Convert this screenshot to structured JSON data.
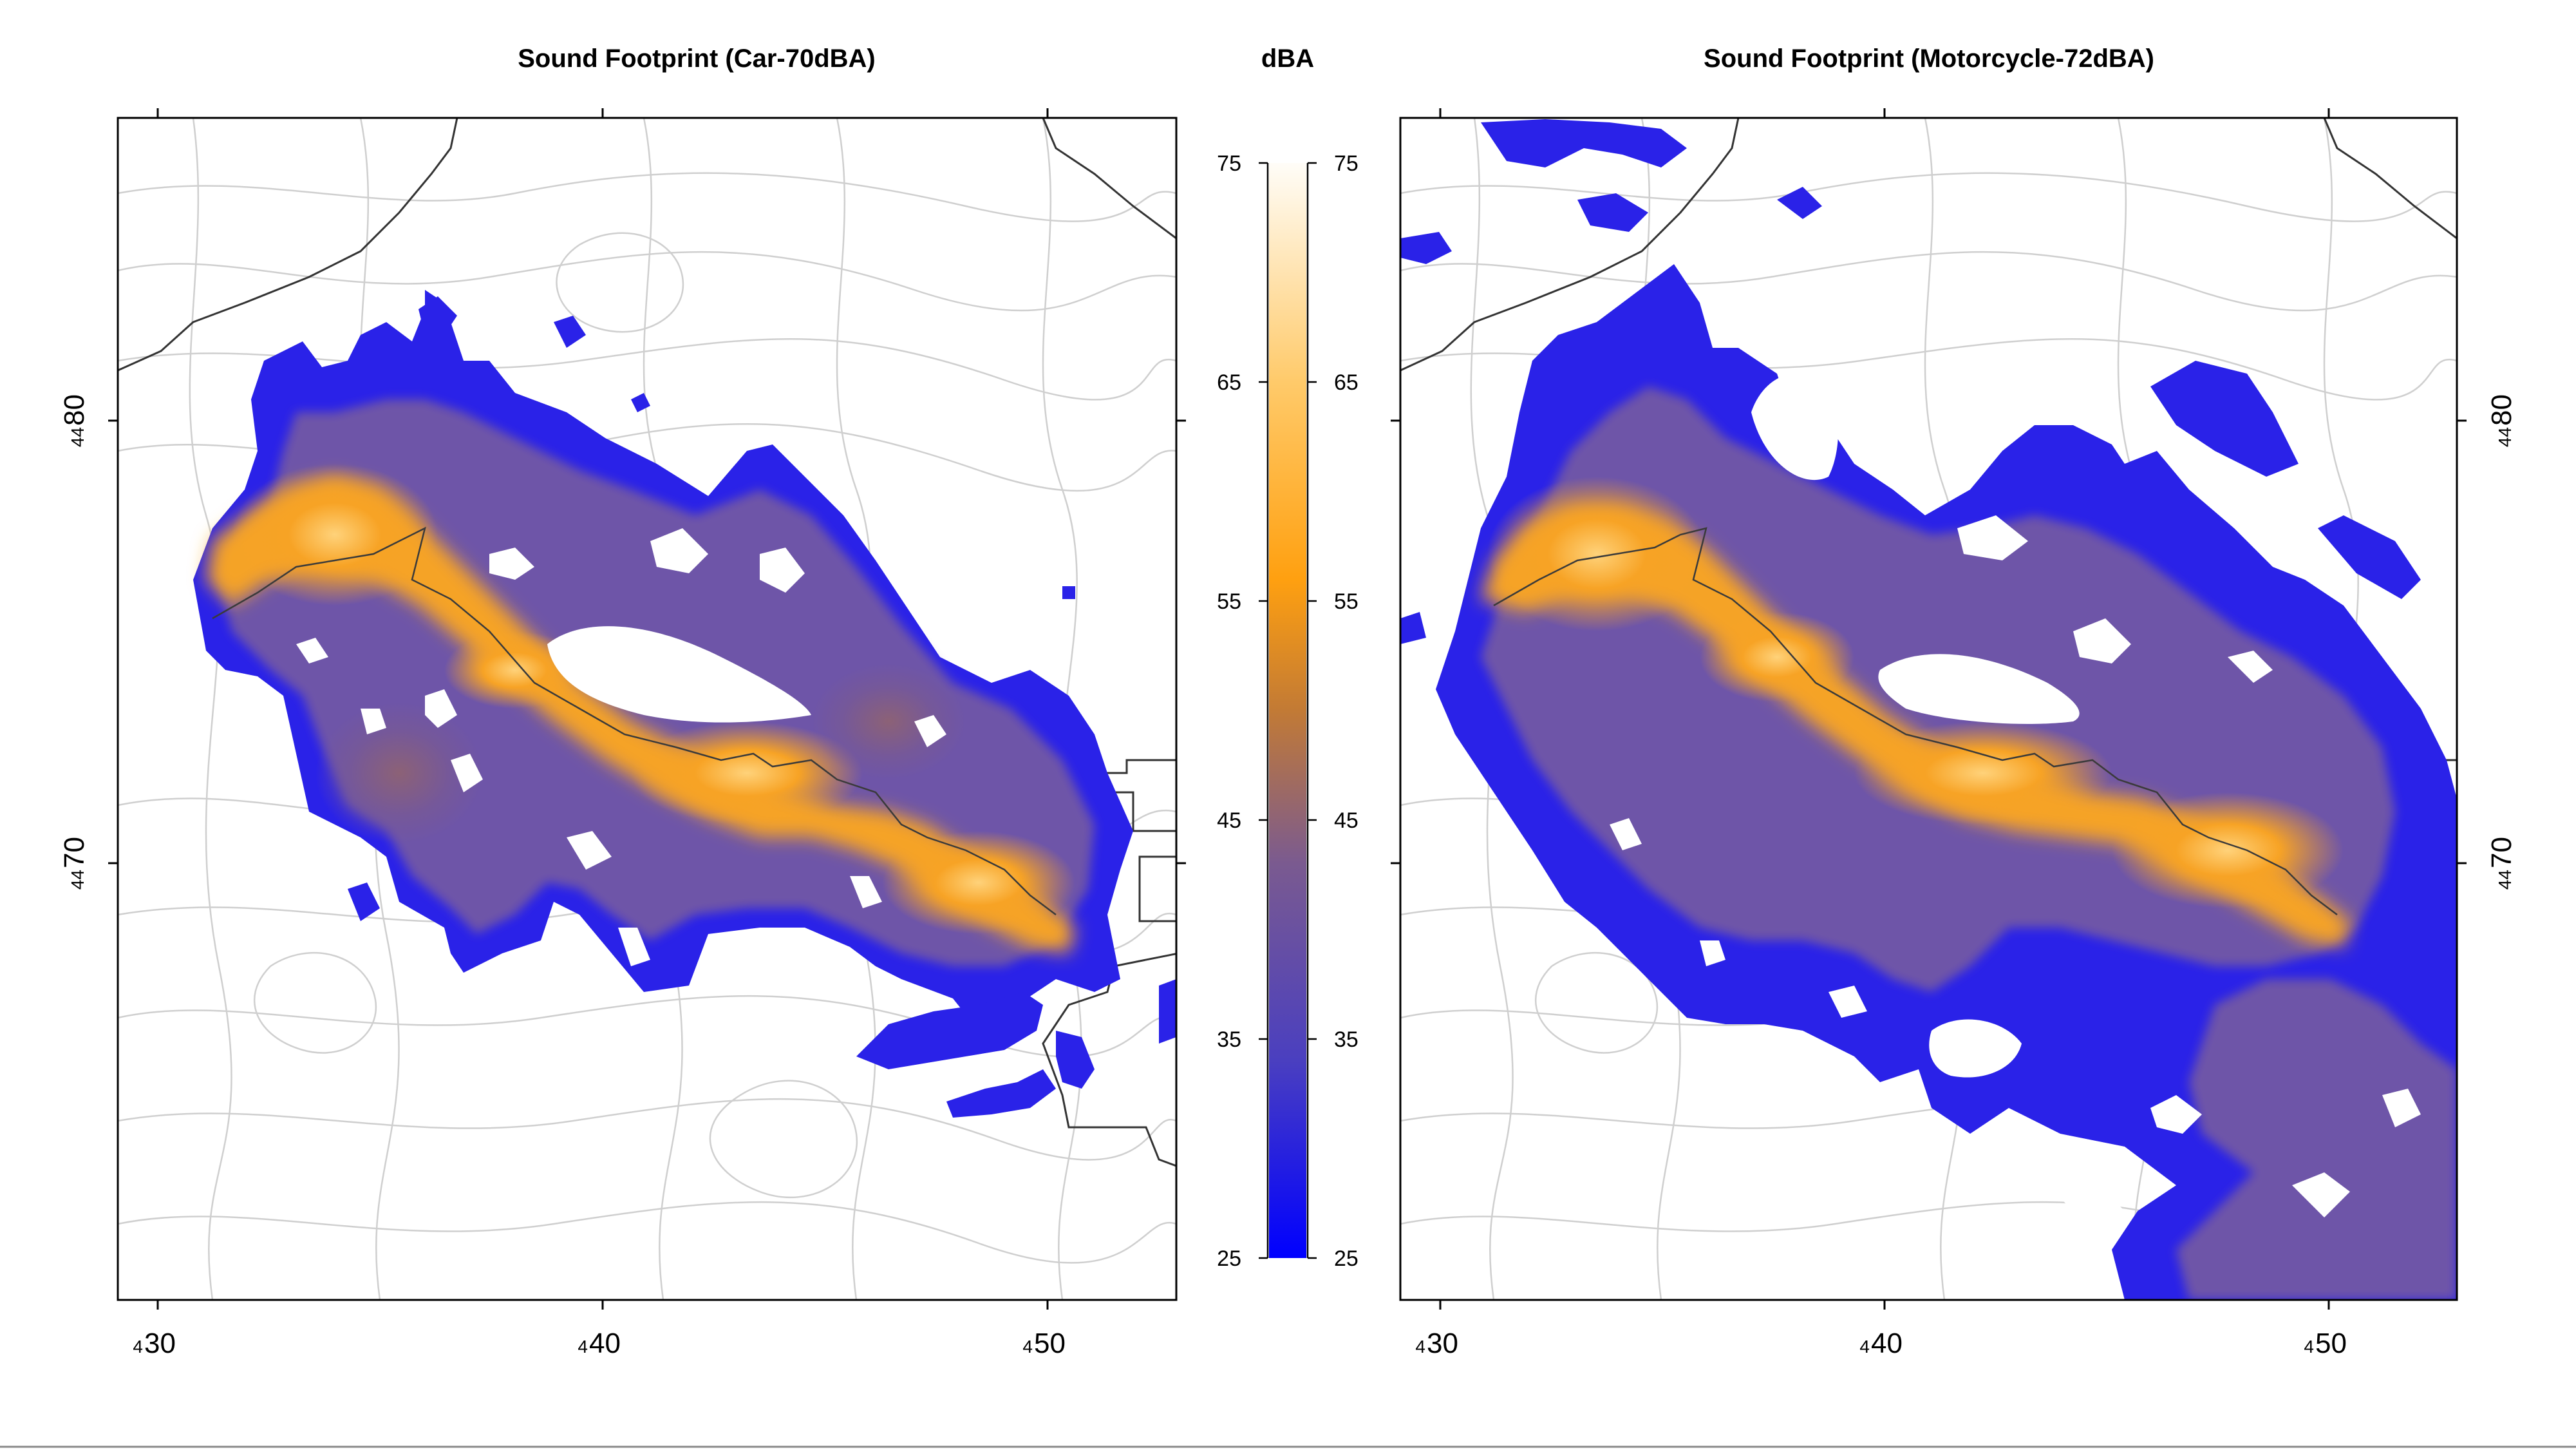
{
  "maps": [
    {
      "title": "Sound Footprint (Car-70dBA)",
      "x_ticks": [
        {
          "prefix": "4",
          "value": "30"
        },
        {
          "prefix": "4",
          "value": "40"
        },
        {
          "prefix": "4",
          "value": "50"
        }
      ],
      "y_ticks": [
        {
          "prefix": "44",
          "value": "80"
        },
        {
          "prefix": "44",
          "value": "70"
        }
      ]
    },
    {
      "title": "Sound Footprint (Motorcycle-72dBA)",
      "x_ticks": [
        {
          "prefix": "4",
          "value": "30"
        },
        {
          "prefix": "4",
          "value": "40"
        },
        {
          "prefix": "4",
          "value": "50"
        }
      ],
      "y_ticks": [
        {
          "prefix": "44",
          "value": "80"
        },
        {
          "prefix": "44",
          "value": "70"
        }
      ]
    }
  ],
  "colorbar": {
    "title": "dBA",
    "ticks": [
      "75",
      "65",
      "55",
      "45",
      "35",
      "25"
    ],
    "min": 25,
    "max": 75,
    "colors": [
      "#1a1aff",
      "#6a5aa0",
      "#a87450",
      "#ff9f10",
      "#ffc860",
      "#fffaf0"
    ]
  },
  "legend_colors": {
    "footprint_low": "#2020ee",
    "footprint_mid": "#7a5a90",
    "footprint_high": "#f7a325",
    "contour": "#c8c8c8",
    "boundary": "#333333"
  }
}
